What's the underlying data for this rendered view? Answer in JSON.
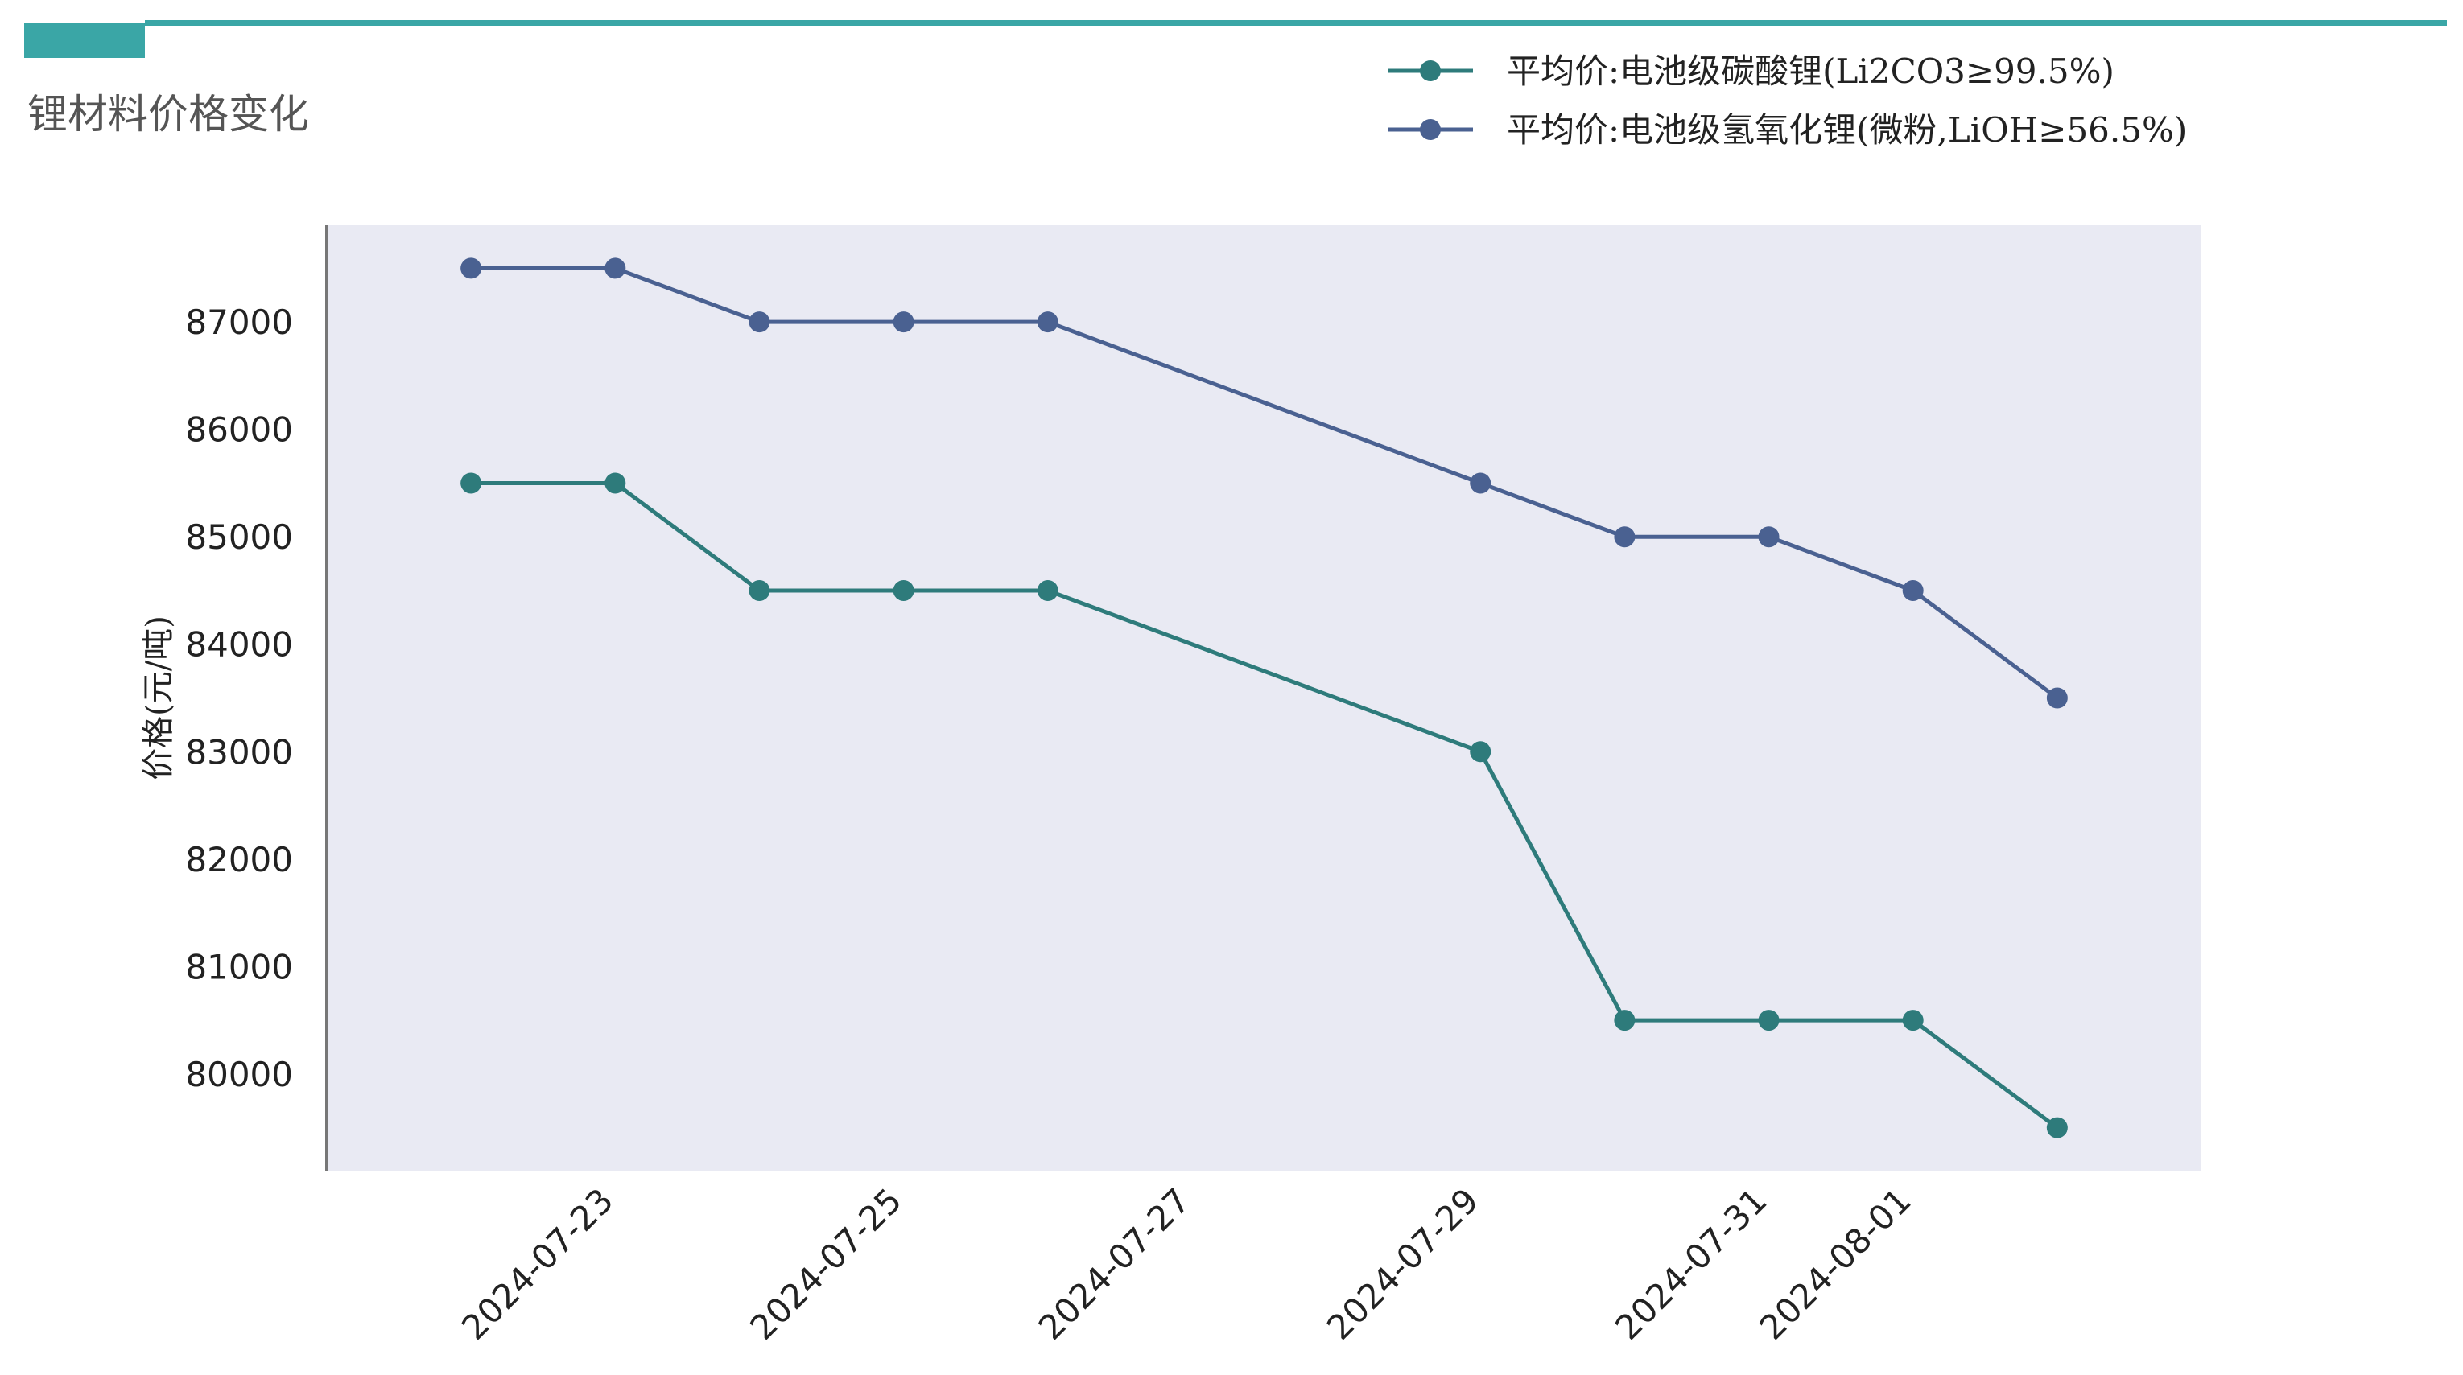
{
  "page": {
    "title": "锂材料价格变化"
  },
  "colors": {
    "accent": "#3aa6a6",
    "plot_bg": "#e9eaf3",
    "axis": "#777777"
  },
  "chart_data": {
    "type": "line",
    "title": "",
    "xlabel": "",
    "ylabel": "价格(元/吨)",
    "legend_position": "top-right",
    "grid": false,
    "ylim": [
      79100,
      87900
    ],
    "xlim": [
      "2024-07-21",
      "2024-08-03"
    ],
    "x": [
      "2024-07-22",
      "2024-07-23",
      "2024-07-24",
      "2024-07-25",
      "2024-07-26",
      "2024-07-29",
      "2024-07-30",
      "2024-07-31",
      "2024-08-01",
      "2024-08-02"
    ],
    "x_ticks": [
      "2024-07-23",
      "2024-07-25",
      "2024-07-27",
      "2024-07-29",
      "2024-07-31",
      "2024-08-01"
    ],
    "y_ticks": [
      80000,
      81000,
      82000,
      83000,
      84000,
      85000,
      86000,
      87000
    ],
    "series": [
      {
        "name": "平均价:电池级碳酸锂(Li2CO3≥99.5%)",
        "color": "#2e7b7b",
        "values": [
          85500,
          85500,
          84500,
          84500,
          84500,
          83000,
          80500,
          80500,
          80500,
          79500
        ]
      },
      {
        "name": "平均价:电池级氢氧化锂(微粉,LiOH≥56.5%)",
        "color": "#4a6191",
        "values": [
          87500,
          87500,
          87000,
          87000,
          87000,
          85500,
          85000,
          85000,
          84500,
          83500
        ]
      }
    ]
  }
}
